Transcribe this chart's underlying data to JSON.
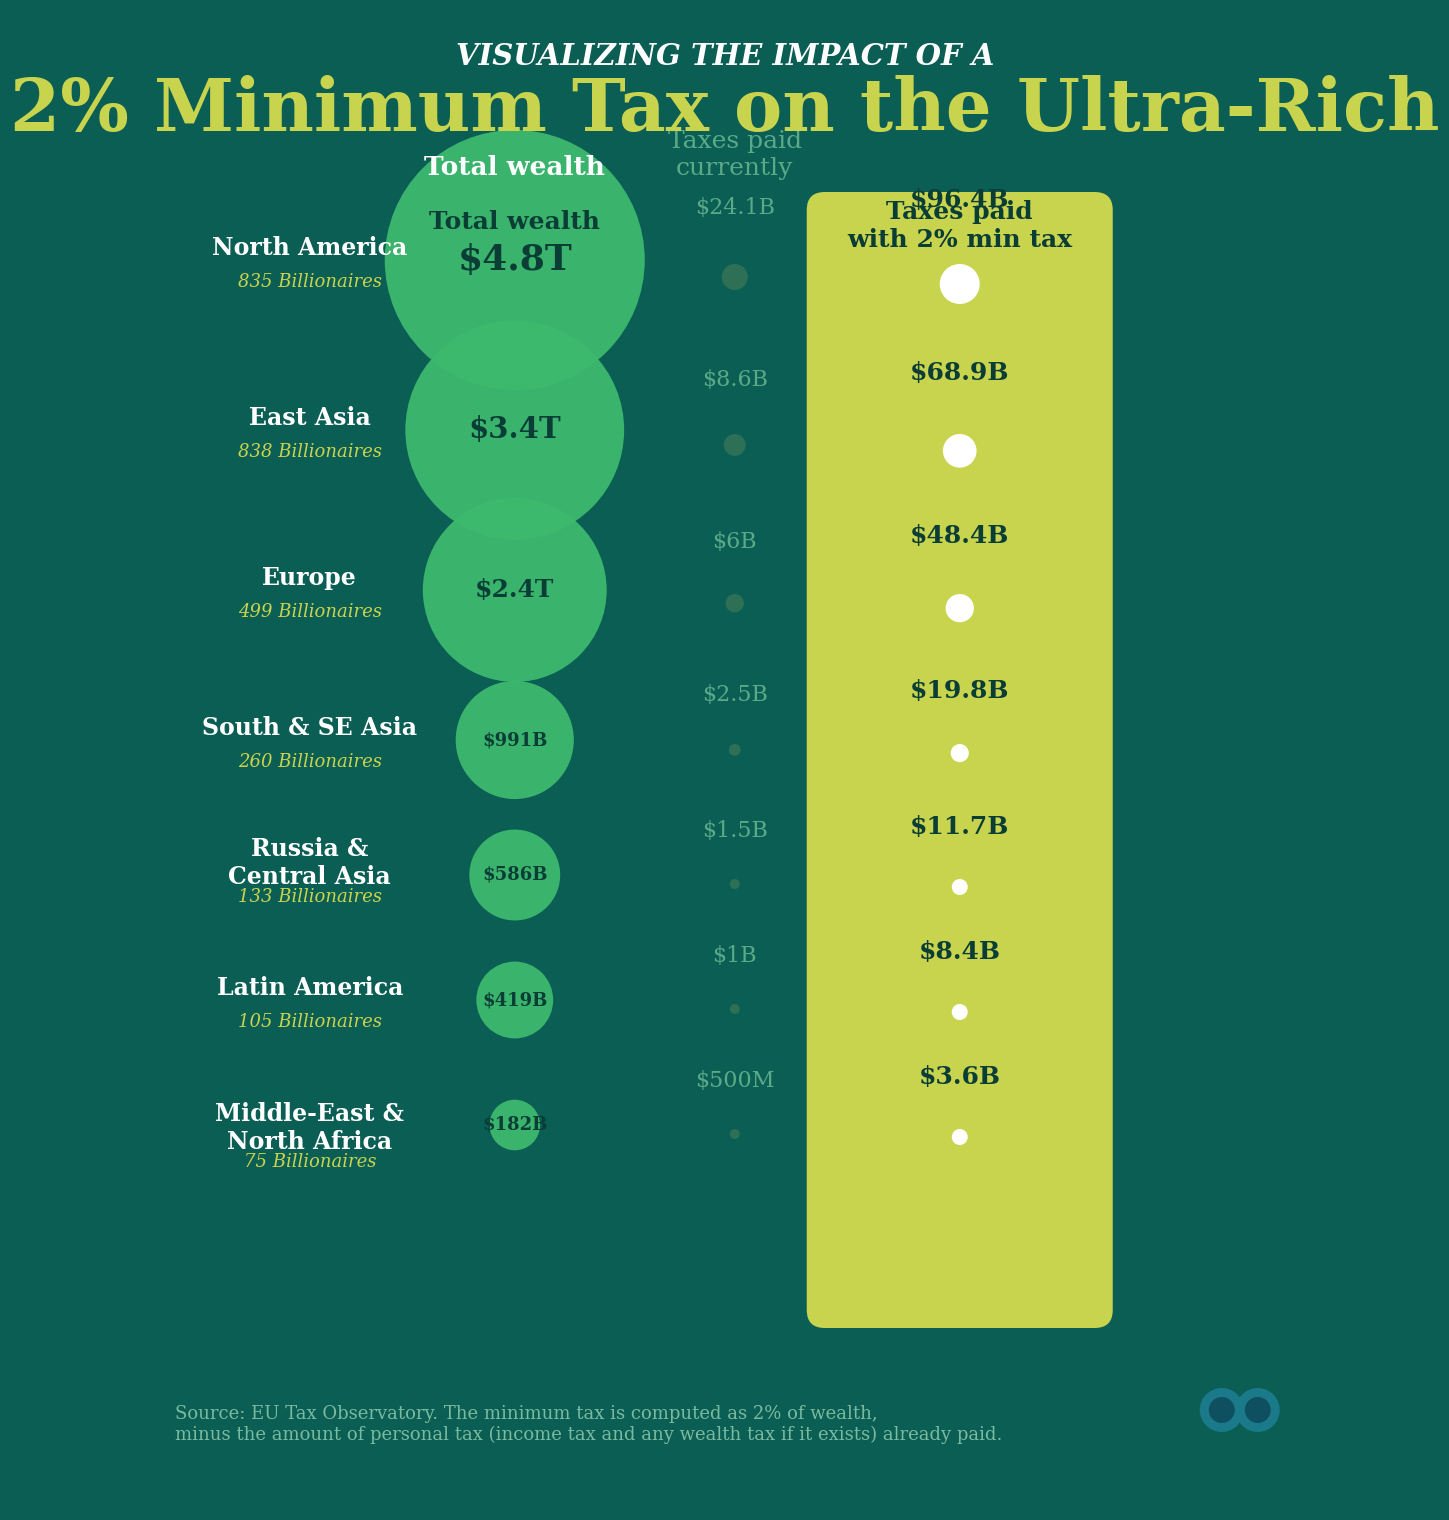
{
  "title_line1": "VISUALIZING THE IMPACT OF A",
  "title_line2": "2% Minimum Tax on the Ultra-Rich",
  "bg_color": "#0b5e54",
  "yellow_box_color": "#c8d44e",
  "bubble_color": "#3dba6e",
  "regions": [
    {
      "name": "North America",
      "billionaires": "835 Billionaires",
      "wealth": "$4.8T",
      "wealth_val": 4800,
      "current_tax": "$24.1B",
      "new_tax": "$96.4B"
    },
    {
      "name": "East Asia",
      "billionaires": "838 Billionaires",
      "wealth": "$3.4T",
      "wealth_val": 3400,
      "current_tax": "$8.6B",
      "new_tax": "$68.9B"
    },
    {
      "name": "Europe",
      "billionaires": "499 Billionaires",
      "wealth": "$2.4T",
      "wealth_val": 2400,
      "current_tax": "$6B",
      "new_tax": "$48.4B"
    },
    {
      "name": "South & SE Asia",
      "billionaires": "260 Billionaires",
      "wealth": "$991B",
      "wealth_val": 991,
      "current_tax": "$2.5B",
      "new_tax": "$19.8B"
    },
    {
      "name": "Russia &\nCentral Asia",
      "billionaires": "133 Billionaires",
      "wealth": "$586B",
      "wealth_val": 586,
      "current_tax": "$1.5B",
      "new_tax": "$11.7B"
    },
    {
      "name": "Latin America",
      "billionaires": "105 Billionaires",
      "wealth": "$419B",
      "wealth_val": 419,
      "current_tax": "$1B",
      "new_tax": "$8.4B"
    },
    {
      "name": "Middle-East &\nNorth Africa",
      "billionaires": "75 Billionaires",
      "wealth": "$182B",
      "wealth_val": 182,
      "current_tax": "$500M",
      "new_tax": "$3.6B"
    }
  ],
  "col_header_wealth": "Total wealth",
  "col_header_current": "Taxes paid\ncurrently",
  "col_header_new": "Taxes paid\nwith 2% min tax",
  "source_text": "Source: EU Tax Observatory. The minimum tax is computed as 2% of wealth,\nminus the amount of personal tax (income tax and any wealth tax if it exists) already paid.",
  "white_color": "#ffffff",
  "dark_text": "#0a3d35",
  "yellow_text": "#c8d44e",
  "teal_text": "#5aaa88",
  "header_text_color": "#0a3d35"
}
